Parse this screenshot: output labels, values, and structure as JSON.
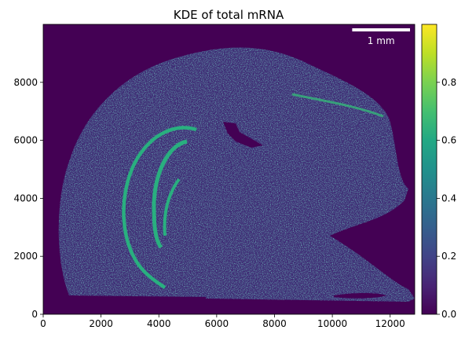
{
  "chart_data": {
    "type": "heatmap",
    "title": "KDE of total mRNA",
    "xlabel": "",
    "ylabel": "",
    "xlim": [
      0,
      12850
    ],
    "ylim": [
      0,
      10000
    ],
    "x_ticks": [
      0,
      2000,
      4000,
      6000,
      8000,
      10000,
      12000
    ],
    "y_ticks": [
      0,
      2000,
      4000,
      6000,
      8000
    ],
    "grid": false,
    "colormap": "viridis",
    "colorbar": {
      "range": [
        0,
        1
      ],
      "ticks": [
        0.0,
        0.2,
        0.4,
        0.6,
        0.8
      ],
      "tick_labels": [
        "0.0",
        "0.2",
        "0.4",
        "0.6",
        "0.8"
      ]
    },
    "scale_bar": {
      "label": "1 mm",
      "length_units": 2000,
      "color": "#ffffff",
      "placement": "top-right"
    },
    "background_value": 0.0,
    "colors": {
      "background": "#440154",
      "tissue_low": "#3e2a74",
      "tissue_mid": "#31688e",
      "tissue_high": "#35b779",
      "dense_band": "#29af7f"
    }
  }
}
